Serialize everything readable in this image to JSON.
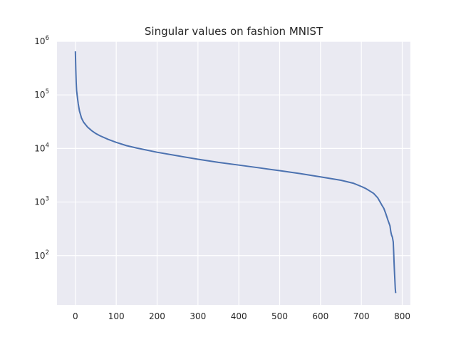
{
  "chart_data": {
    "type": "line",
    "title": "Singular values on fashion MNIST",
    "xlabel": "",
    "ylabel": "",
    "yscale": "log",
    "grid": true,
    "legend": "none",
    "xlim": [
      -45,
      820
    ],
    "ylim": [
      12,
      1000000
    ],
    "xticks": [
      0,
      100,
      200,
      300,
      400,
      500,
      600,
      700,
      800
    ],
    "xtick_labels": [
      "0",
      "100",
      "200",
      "300",
      "400",
      "500",
      "600",
      "700",
      "800"
    ],
    "yticks": [
      100,
      1000,
      10000,
      100000,
      1000000
    ],
    "ytick_labels": [
      {
        "base": "10",
        "exp": "2"
      },
      {
        "base": "10",
        "exp": "3"
      },
      {
        "base": "10",
        "exp": "4"
      },
      {
        "base": "10",
        "exp": "5"
      },
      {
        "base": "10",
        "exp": "6"
      }
    ],
    "colors": {
      "background": "#eaeaf2",
      "grid": "#ffffff",
      "line": "#4c72b0"
    },
    "series": [
      {
        "x": [
          0,
          1,
          2,
          3,
          5,
          7,
          10,
          15,
          20,
          30,
          40,
          50,
          60,
          80,
          100,
          125,
          150,
          200,
          250,
          300,
          350,
          400,
          450,
          500,
          550,
          600,
          650,
          680,
          700,
          710,
          720,
          730,
          740,
          745,
          750,
          755,
          760,
          765,
          770,
          772,
          774,
          776,
          778,
          779,
          780,
          781,
          782,
          783,
          784
        ],
        "y": [
          650000,
          300000,
          170000,
          120000,
          90000,
          68000,
          50000,
          37000,
          31000,
          25000,
          21500,
          19000,
          17300,
          14800,
          13000,
          11300,
          10200,
          8500,
          7300,
          6300,
          5500,
          4900,
          4350,
          3850,
          3400,
          2950,
          2550,
          2250,
          1950,
          1800,
          1620,
          1450,
          1200,
          1030,
          880,
          760,
          600,
          460,
          360,
          280,
          240,
          220,
          180,
          120,
          75,
          50,
          35,
          24,
          20
        ]
      }
    ]
  }
}
